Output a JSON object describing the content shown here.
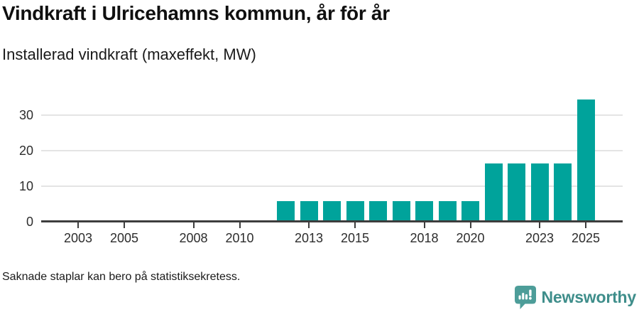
{
  "header": {
    "title": "Vindkraft i Ulricehamns kommun, år för år",
    "subtitle": "Installerad vindkraft (maxeffekt, MW)"
  },
  "chart_data": {
    "type": "bar",
    "title": "Vindkraft i Ulricehamns kommun, år för år",
    "subtitle": "Installerad vindkraft (maxeffekt, MW)",
    "ylabel": "Installerad vindkraft (maxeffekt, MW)",
    "xlabel": "",
    "unit": "MW",
    "x": [
      2002,
      2003,
      2004,
      2005,
      2006,
      2007,
      2008,
      2009,
      2010,
      2011,
      2012,
      2013,
      2014,
      2015,
      2016,
      2017,
      2018,
      2019,
      2020,
      2021,
      2022,
      2023,
      2024,
      2025
    ],
    "values": [
      null,
      null,
      null,
      null,
      null,
      null,
      null,
      null,
      null,
      null,
      5.8,
      5.8,
      5.8,
      5.8,
      5.8,
      5.8,
      5.8,
      5.8,
      5.8,
      16.5,
      16.5,
      16.5,
      16.5,
      34.4
    ],
    "x_ticks": [
      2003,
      2005,
      2008,
      2010,
      2013,
      2015,
      2018,
      2020,
      2023,
      2025
    ],
    "y_ticks": [
      0,
      10,
      20,
      30
    ],
    "y_gridlines": [
      10,
      20,
      30
    ],
    "xlim": [
      2001.5,
      2026.5
    ],
    "ylim": [
      0,
      35
    ],
    "grid": true,
    "legend": "none",
    "bar_color": "#00a39b",
    "missing_note": "Saknade staplar kan bero på statistiksekretess."
  },
  "footer": {
    "note": "Saknade staplar kan bero på statistiksekretess.",
    "brand": "Newsworthy"
  },
  "icons": {
    "brand_icon": "newsworthy-speech-bubble-chart-icon"
  },
  "colors": {
    "bar": "#00a39b",
    "axis": "#3d3d3d",
    "gridline": "#e4e4e4",
    "title_text": "#0f0f0f",
    "body_text": "#1a1a1a",
    "tick_text": "#2d2d2d",
    "brand_teal_icon": "#4d9d99",
    "brand_teal_text": "#3f8e8b",
    "background": "#ffffff"
  }
}
